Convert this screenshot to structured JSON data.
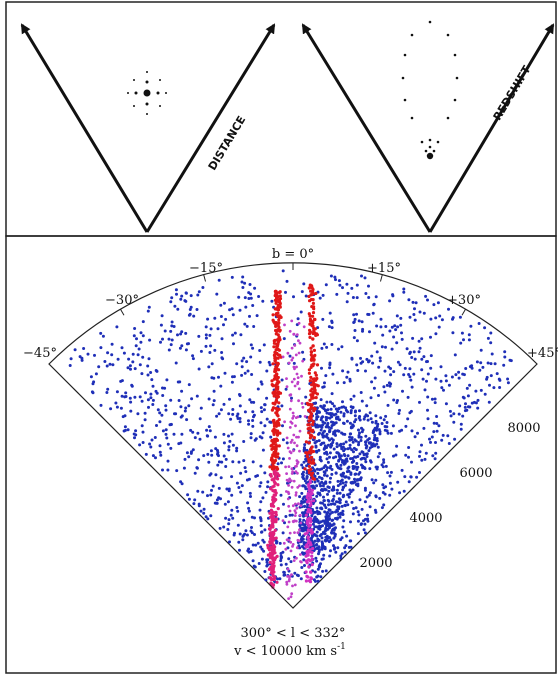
{
  "top_panel": {
    "left_label": "DISTANCE",
    "right_label": "REDSHIFT"
  },
  "wedge": {
    "angle_labels": [
      "b = 0°",
      "−15°",
      "+15°",
      "−30°",
      "+30°",
      "−45°",
      "+45°"
    ],
    "radial_labels": [
      "2000",
      "4000",
      "6000",
      "8000"
    ]
  },
  "caption": {
    "line1": "300° < l < 332°",
    "line2": "v < 10000 km s",
    "line2_sup": "-1"
  }
}
